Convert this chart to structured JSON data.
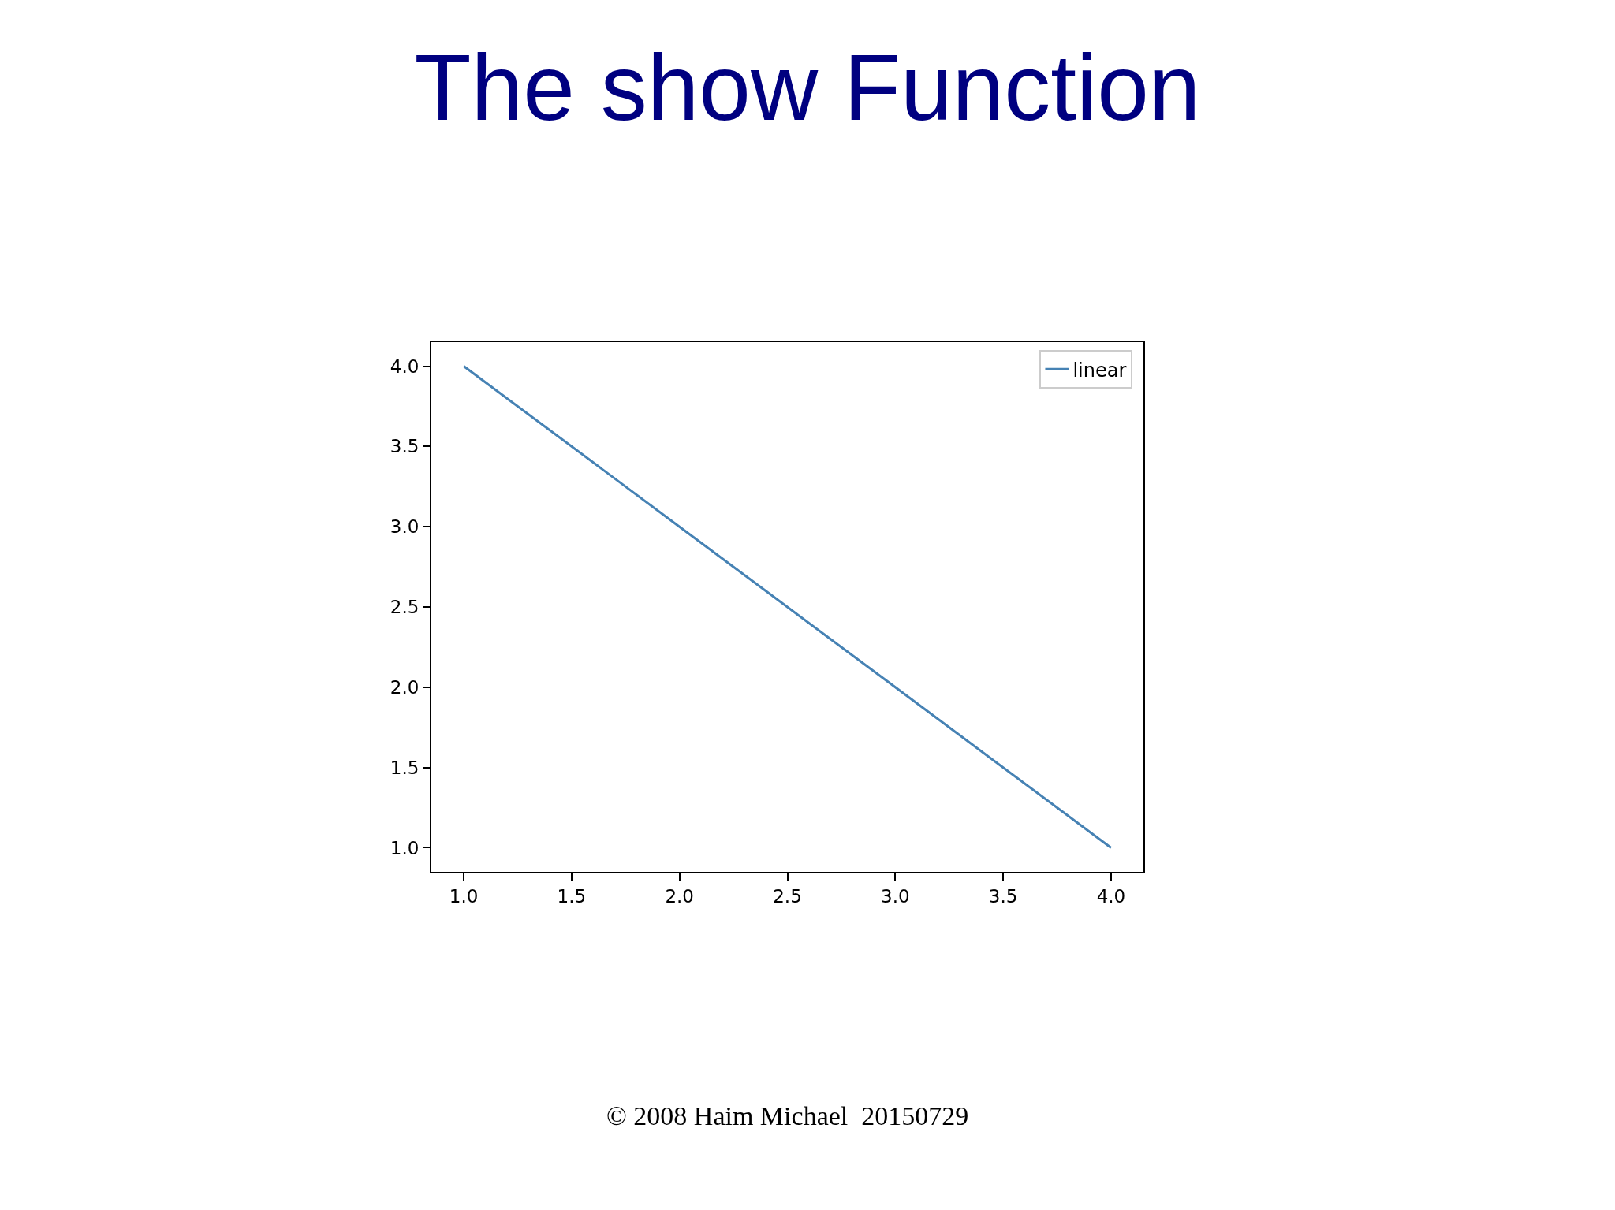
{
  "chart_data": {
    "type": "line",
    "title": "The show Function",
    "x": [
      1,
      2,
      3,
      4
    ],
    "series": [
      {
        "name": "linear",
        "color": "#4682b4",
        "values": [
          4,
          3,
          2,
          1
        ]
      }
    ],
    "xlim": [
      0.85,
      4.15
    ],
    "xticks": [
      {
        "value": 1,
        "label": "1.0"
      },
      {
        "value": 1.5,
        "label": "1.5"
      },
      {
        "value": 2,
        "label": "2.0"
      },
      {
        "value": 2.5,
        "label": "2.5"
      },
      {
        "value": 3,
        "label": "3.0"
      },
      {
        "value": 3.5,
        "label": "3.5"
      },
      {
        "value": 4,
        "label": "4.0"
      }
    ],
    "ylim": [
      0.85,
      4.15
    ],
    "yticks": [
      {
        "value": 1,
        "label": "1.0"
      },
      {
        "value": 1.5,
        "label": "1.5"
      },
      {
        "value": 2,
        "label": "2.0"
      },
      {
        "value": 2.5,
        "label": "2.5"
      },
      {
        "value": 3,
        "label": "3.0"
      },
      {
        "value": 3.5,
        "label": "3.5"
      },
      {
        "value": 4,
        "label": "4.0"
      }
    ],
    "grid": false,
    "legend": "top right",
    "marker": "none",
    "line_style": "solid",
    "annotations": [
      "© 2008 Haim Michael  20150729"
    ]
  }
}
